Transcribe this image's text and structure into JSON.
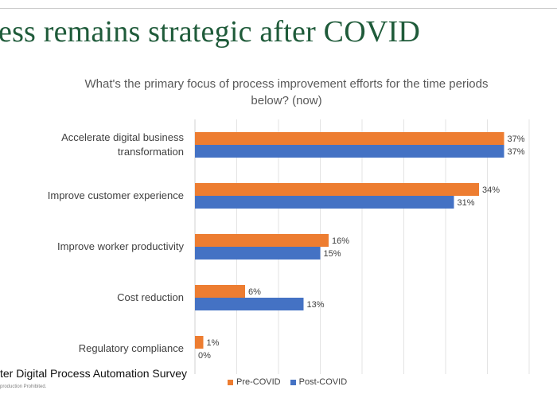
{
  "slide": {
    "title": "ess remains strategic after COVID",
    "source": "ter Digital Process Automation Survey",
    "copyright": "production Prohibited."
  },
  "chart_data": {
    "type": "bar",
    "orientation": "horizontal",
    "title": "What's the primary focus of process improvement efforts for the time periods below? (now)",
    "categories": [
      [
        "Accelerate digital business",
        "transformation"
      ],
      [
        "Improve customer experience"
      ],
      [
        "Improve worker productivity"
      ],
      [
        "Cost reduction"
      ],
      [
        "Regulatory compliance"
      ]
    ],
    "series": [
      {
        "name": "Pre-COVID",
        "color": "#ED7D31",
        "values": [
          37,
          34,
          16,
          6,
          1
        ],
        "labels": [
          "37%",
          "34%",
          "16%",
          "6%",
          "1%"
        ]
      },
      {
        "name": "Post-COVID",
        "color": "#4472C4",
        "values": [
          37,
          31,
          15,
          13,
          0
        ],
        "labels": [
          "37%",
          "31%",
          "15%",
          "13%",
          "0%"
        ]
      }
    ],
    "xlim": [
      0,
      40
    ],
    "value_format": "percent",
    "grid": "vertical",
    "legend_position": "bottom"
  }
}
